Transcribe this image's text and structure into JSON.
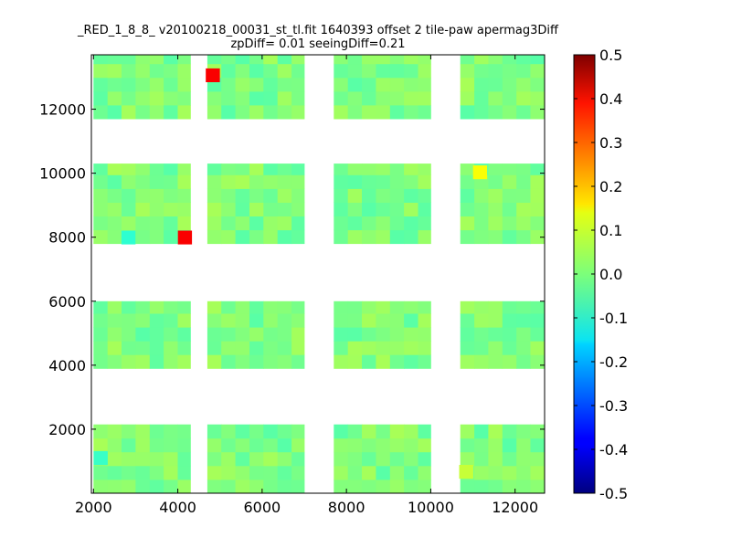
{
  "chart_data": {
    "type": "heatmap",
    "title": "_RED_1_8_8_ v20100218_00031_st_tl.fit 1640393 offset 2 tile-paw apermag3Diff",
    "subtitle": "zpDiff= 0.01 seeingDiff=0.21",
    "xlim": [
      1950,
      12700
    ],
    "ylim": [
      0,
      13700
    ],
    "x_ticks": [
      2000,
      4000,
      6000,
      8000,
      10000,
      12000
    ],
    "y_ticks": [
      2000,
      4000,
      6000,
      8000,
      10000,
      12000
    ],
    "x_tick_labels": [
      "2000",
      "4000",
      "6000",
      "8000",
      "10000",
      "12000"
    ],
    "y_tick_labels": [
      "2000",
      "4000",
      "6000",
      "8000",
      "10000",
      "12000"
    ],
    "colorbar": {
      "colormap": "jet",
      "range": [
        -0.5,
        0.5
      ],
      "ticks": [
        "0.5",
        "0.4",
        "0.3",
        "0.2",
        "0.1",
        "0.0",
        "-0.1",
        "-0.2",
        "-0.3",
        "-0.4",
        "-0.5"
      ]
    },
    "cell_size": [
      333,
      430
    ],
    "typical_value": 0.0,
    "blocks": [
      {
        "x": [
          2000,
          4300
        ],
        "y": [
          0,
          2150
        ]
      },
      {
        "x": [
          4700,
          7000
        ],
        "y": [
          0,
          2150
        ]
      },
      {
        "x": [
          7700,
          10000
        ],
        "y": [
          0,
          2150
        ]
      },
      {
        "x": [
          10700,
          12700
        ],
        "y": [
          0,
          2150
        ]
      },
      {
        "x": [
          2000,
          4300
        ],
        "y": [
          3900,
          6000
        ]
      },
      {
        "x": [
          4700,
          7000
        ],
        "y": [
          3900,
          6000
        ]
      },
      {
        "x": [
          7700,
          10000
        ],
        "y": [
          3900,
          6000
        ]
      },
      {
        "x": [
          10700,
          12700
        ],
        "y": [
          3900,
          6000
        ]
      },
      {
        "x": [
          2000,
          4300
        ],
        "y": [
          7800,
          10300
        ]
      },
      {
        "x": [
          4700,
          7000
        ],
        "y": [
          7800,
          10300
        ]
      },
      {
        "x": [
          7700,
          10000
        ],
        "y": [
          7800,
          10300
        ]
      },
      {
        "x": [
          10700,
          12700
        ],
        "y": [
          7800,
          10300
        ]
      },
      {
        "x": [
          2000,
          4300
        ],
        "y": [
          11700,
          13700
        ]
      },
      {
        "x": [
          4700,
          7000
        ],
        "y": [
          11700,
          13700
        ]
      },
      {
        "x": [
          7700,
          10000
        ],
        "y": [
          11700,
          13700
        ]
      },
      {
        "x": [
          10700,
          12700
        ],
        "y": [
          11700,
          13700
        ]
      }
    ],
    "outliers": [
      {
        "x": 4170,
        "y": 7990,
        "value": 0.38
      },
      {
        "x": 4830,
        "y": 13060,
        "value": 0.38
      },
      {
        "x": 11170,
        "y": 10030,
        "value": 0.12
      },
      {
        "x": 10840,
        "y": 670,
        "value": 0.07
      },
      {
        "x": 2830,
        "y": 7990,
        "value": -0.08
      },
      {
        "x": 2170,
        "y": 1100,
        "value": -0.07
      }
    ]
  }
}
